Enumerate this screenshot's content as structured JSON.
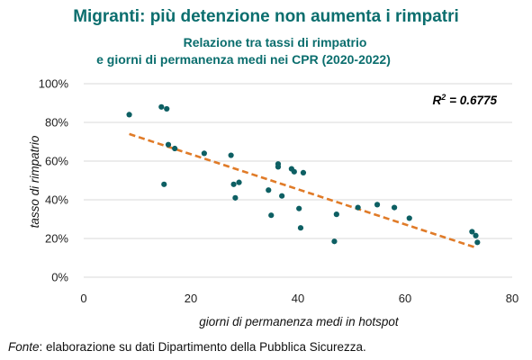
{
  "title": "Migranti: più detenzione non aumenta i rimpatri",
  "subtitle_line1": "Relazione tra tassi di rimpatrio",
  "subtitle_line2": "e giorni di permanenza medi nei CPR (2020-2022)",
  "footer": {
    "source_label": "Fonte",
    "source_text": ": elaborazione su dati Dipartimento della Pubblica Sicurezza."
  },
  "colors": {
    "title": "#0b6e6e",
    "points": "#0d5f63",
    "trendline": "#e07b28",
    "grid": "#d9d9d9"
  },
  "chart_data": {
    "type": "scatter",
    "xlabel": "giorni di permanenza medi in hotspot",
    "ylabel": "tasso di rimpatrio",
    "xlim": [
      0,
      80
    ],
    "ylim": [
      0,
      1
    ],
    "x_ticks": [
      "0",
      "20",
      "40",
      "60",
      "80"
    ],
    "y_ticks": [
      "0%",
      "20%",
      "40%",
      "60%",
      "80%",
      "100%"
    ],
    "grid": "horizontal",
    "annotation": {
      "text_main": "R",
      "text_sup": "2",
      "text_rest": " = 0.6775",
      "placement": "top-right"
    },
    "trendline": {
      "x": [
        8.5,
        73
      ],
      "y": [
        0.74,
        0.155
      ],
      "style": "dashed"
    },
    "points": [
      {
        "x": 8.5,
        "y": 0.84
      },
      {
        "x": 14.5,
        "y": 0.88
      },
      {
        "x": 15.5,
        "y": 0.87
      },
      {
        "x": 15.8,
        "y": 0.685
      },
      {
        "x": 17,
        "y": 0.665
      },
      {
        "x": 15,
        "y": 0.48
      },
      {
        "x": 22.5,
        "y": 0.64
      },
      {
        "x": 27.5,
        "y": 0.63
      },
      {
        "x": 28,
        "y": 0.48
      },
      {
        "x": 29,
        "y": 0.49
      },
      {
        "x": 28.3,
        "y": 0.41
      },
      {
        "x": 34.5,
        "y": 0.45
      },
      {
        "x": 35,
        "y": 0.32
      },
      {
        "x": 36.3,
        "y": 0.585
      },
      {
        "x": 36.3,
        "y": 0.57
      },
      {
        "x": 37,
        "y": 0.42
      },
      {
        "x": 38.8,
        "y": 0.56
      },
      {
        "x": 39.3,
        "y": 0.545
      },
      {
        "x": 41,
        "y": 0.54
      },
      {
        "x": 40.2,
        "y": 0.355
      },
      {
        "x": 40.5,
        "y": 0.255
      },
      {
        "x": 47.2,
        "y": 0.325
      },
      {
        "x": 46.8,
        "y": 0.185
      },
      {
        "x": 51.2,
        "y": 0.36
      },
      {
        "x": 54.8,
        "y": 0.375
      },
      {
        "x": 58,
        "y": 0.36
      },
      {
        "x": 60.8,
        "y": 0.305
      },
      {
        "x": 72.5,
        "y": 0.235
      },
      {
        "x": 73.2,
        "y": 0.215
      },
      {
        "x": 73.5,
        "y": 0.18
      }
    ]
  }
}
